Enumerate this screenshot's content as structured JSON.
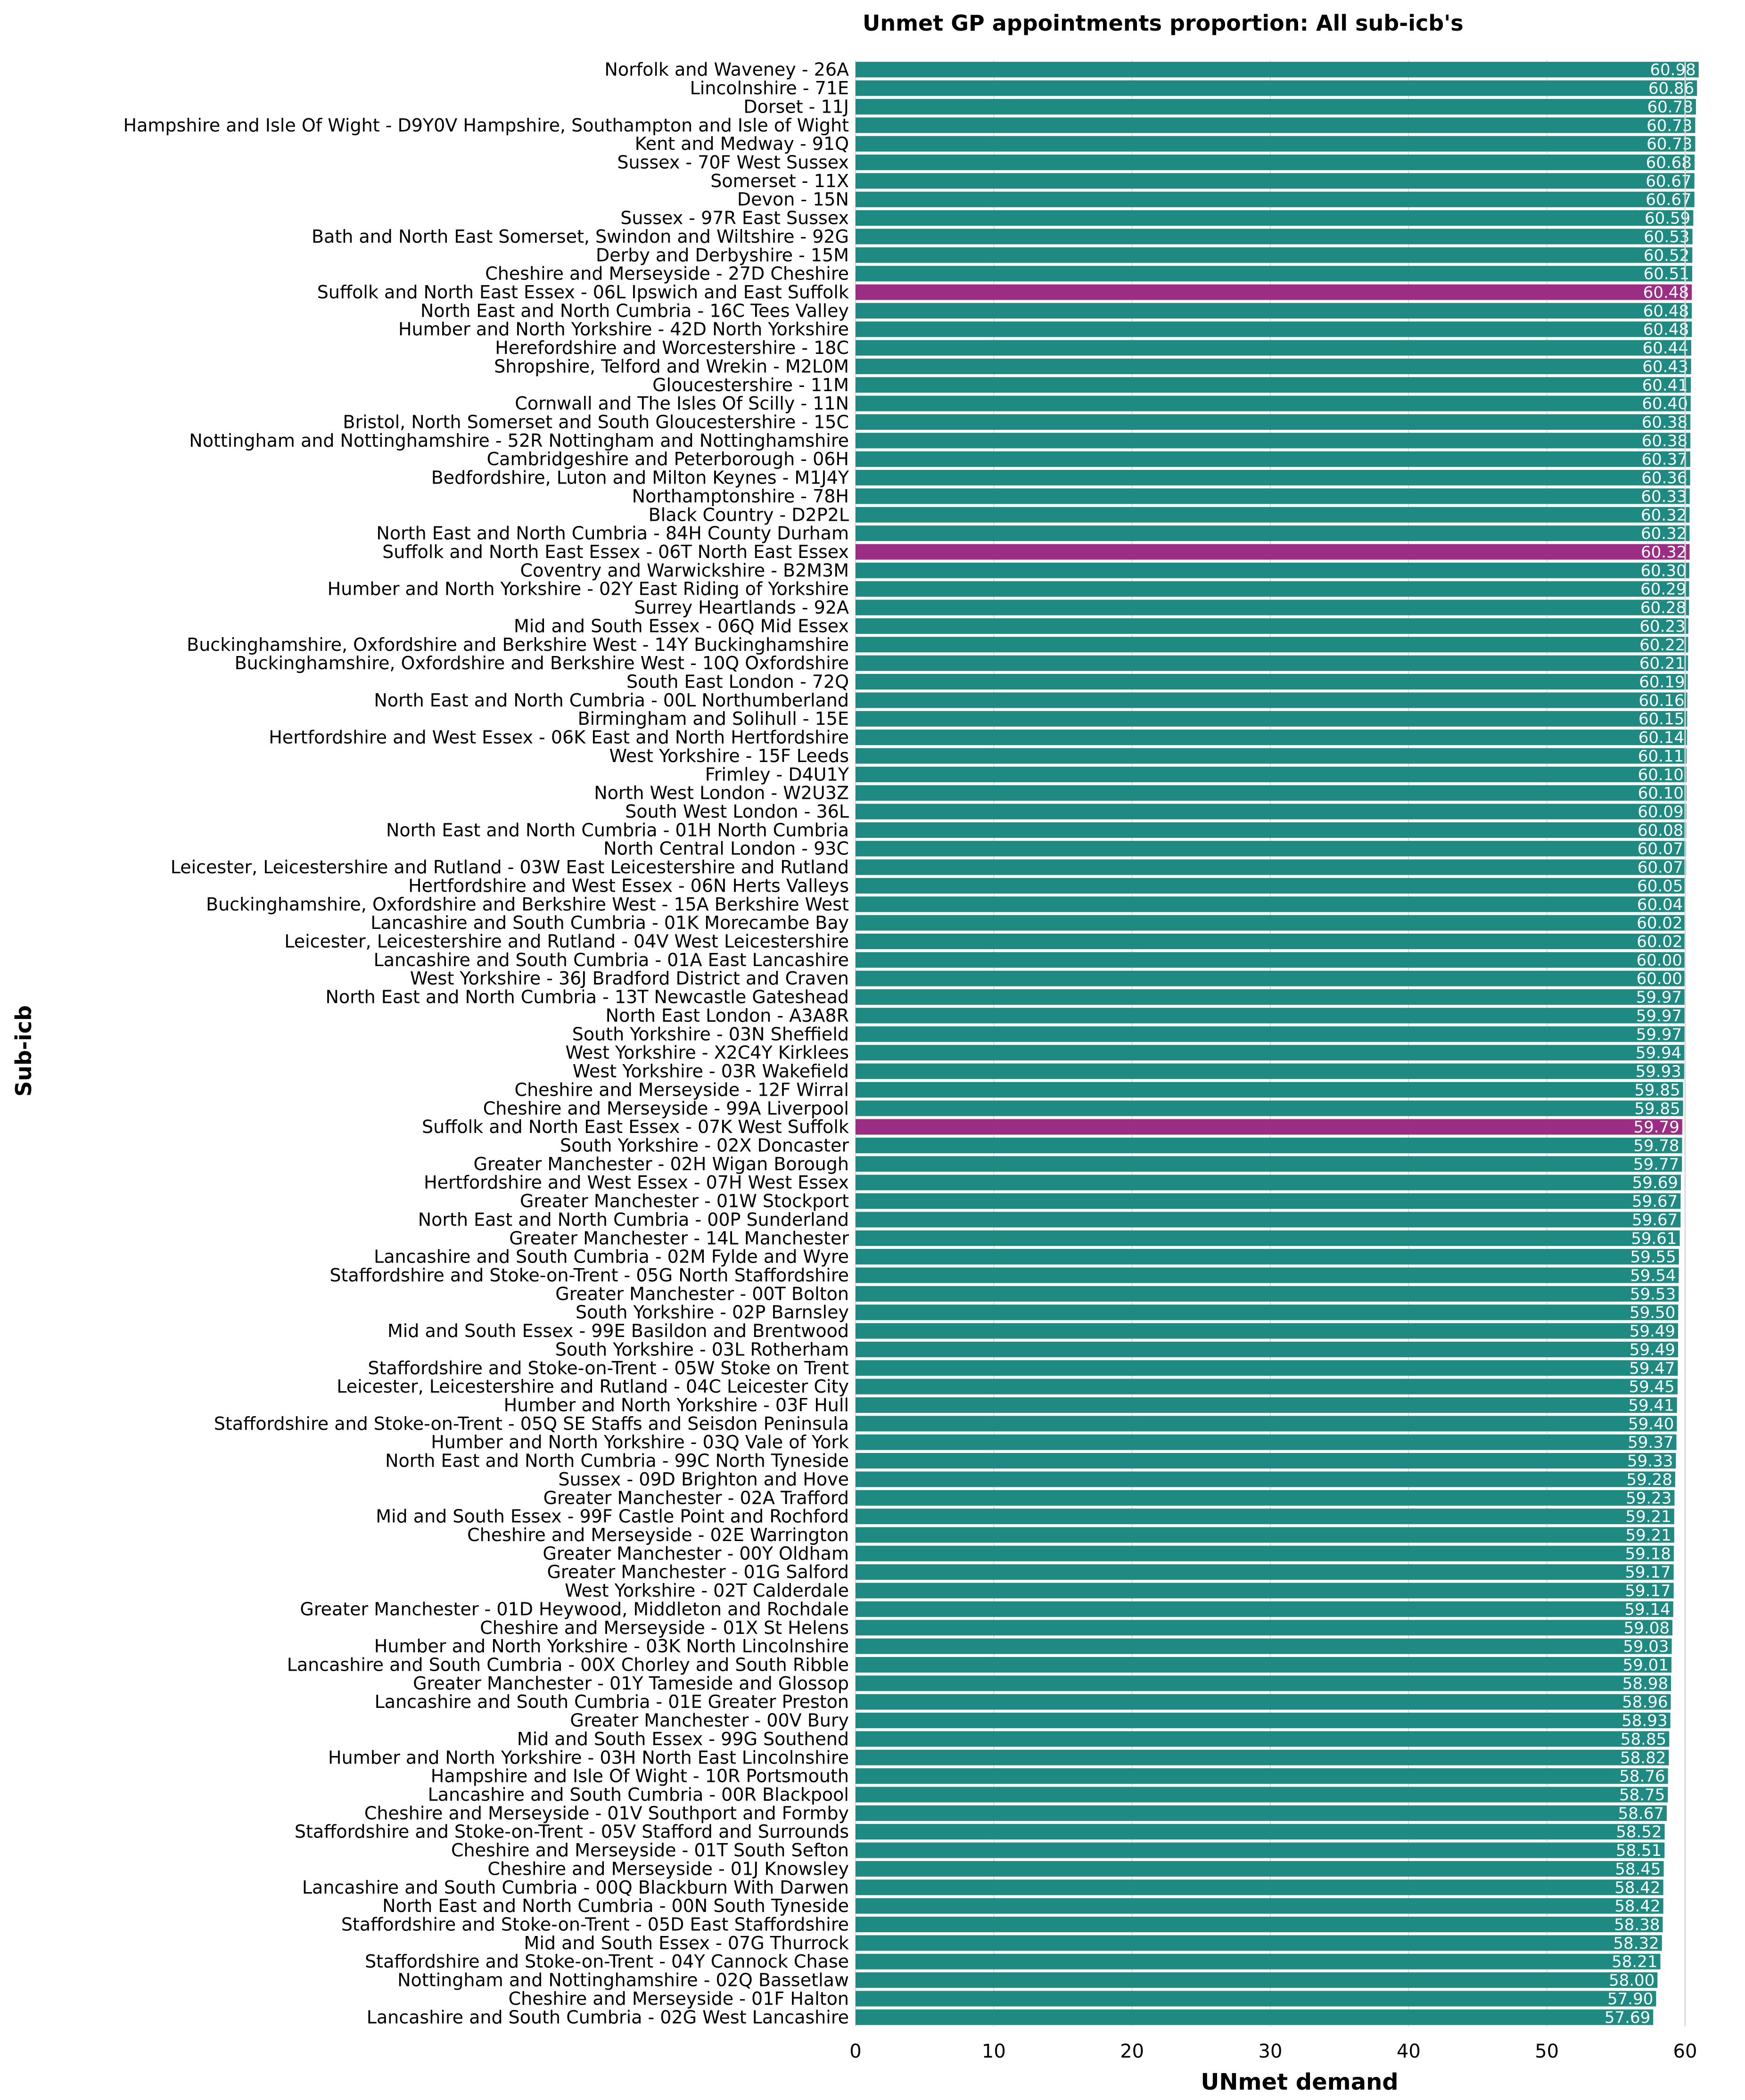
{
  "chart_data": {
    "type": "bar",
    "orientation": "horizontal",
    "title": "Unmet GP appointments proportion: All sub-icb's",
    "xlabel": "UNmet demand",
    "ylabel": "Sub-icb",
    "xlim": [
      0,
      60
    ],
    "xticks": [
      "0",
      "10",
      "20",
      "30",
      "40",
      "50",
      "60"
    ],
    "grid": "vertical",
    "colors": {
      "default": "#1f8a82",
      "highlight": "#9b2d85"
    },
    "bars": [
      {
        "label": "Norfolk and Waveney - 26A",
        "value": 60.98,
        "value_label": "60.98"
      },
      {
        "label": "Lincolnshire - 71E",
        "value": 60.86,
        "value_label": "60.86"
      },
      {
        "label": "Dorset - 11J",
        "value": 60.78,
        "value_label": "60.78"
      },
      {
        "label": "Hampshire and Isle Of Wight - D9Y0V Hampshire, Southampton and Isle of Wight",
        "value": 60.73,
        "value_label": "60.73"
      },
      {
        "label": "Kent and Medway - 91Q",
        "value": 60.73,
        "value_label": "60.73"
      },
      {
        "label": "Sussex - 70F West Sussex",
        "value": 60.68,
        "value_label": "60.68"
      },
      {
        "label": "Somerset - 11X",
        "value": 60.67,
        "value_label": "60.67"
      },
      {
        "label": "Devon - 15N",
        "value": 60.67,
        "value_label": "60.67"
      },
      {
        "label": "Sussex - 97R East Sussex",
        "value": 60.59,
        "value_label": "60.59"
      },
      {
        "label": "Bath and North East Somerset, Swindon and Wiltshire - 92G",
        "value": 60.53,
        "value_label": "60.53"
      },
      {
        "label": "Derby and Derbyshire - 15M",
        "value": 60.52,
        "value_label": "60.52"
      },
      {
        "label": "Cheshire and Merseyside - 27D Cheshire",
        "value": 60.51,
        "value_label": "60.51"
      },
      {
        "label": "Suffolk and North East Essex - 06L Ipswich and East Suffolk",
        "value": 60.48,
        "value_label": "60.48",
        "highlight": true
      },
      {
        "label": "North East and North Cumbria - 16C Tees Valley",
        "value": 60.48,
        "value_label": "60.48"
      },
      {
        "label": "Humber and North Yorkshire - 42D North Yorkshire",
        "value": 60.48,
        "value_label": "60.48"
      },
      {
        "label": "Herefordshire and Worcestershire - 18C",
        "value": 60.44,
        "value_label": "60.44"
      },
      {
        "label": "Shropshire, Telford and Wrekin - M2L0M",
        "value": 60.43,
        "value_label": "60.43"
      },
      {
        "label": "Gloucestershire - 11M",
        "value": 60.41,
        "value_label": "60.41"
      },
      {
        "label": "Cornwall and The Isles Of Scilly - 11N",
        "value": 60.4,
        "value_label": "60.40"
      },
      {
        "label": "Bristol, North Somerset and South Gloucestershire - 15C",
        "value": 60.38,
        "value_label": "60.38"
      },
      {
        "label": "Nottingham and Nottinghamshire - 52R Nottingham and Nottinghamshire",
        "value": 60.38,
        "value_label": "60.38"
      },
      {
        "label": "Cambridgeshire and Peterborough - 06H",
        "value": 60.37,
        "value_label": "60.37"
      },
      {
        "label": "Bedfordshire, Luton and Milton Keynes - M1J4Y",
        "value": 60.36,
        "value_label": "60.36"
      },
      {
        "label": "Northamptonshire - 78H",
        "value": 60.33,
        "value_label": "60.33"
      },
      {
        "label": "Black Country - D2P2L",
        "value": 60.32,
        "value_label": "60.32"
      },
      {
        "label": "North East and North Cumbria - 84H County Durham",
        "value": 60.32,
        "value_label": "60.32"
      },
      {
        "label": "Suffolk and North East Essex - 06T North East Essex",
        "value": 60.32,
        "value_label": "60.32",
        "highlight": true
      },
      {
        "label": "Coventry and Warwickshire - B2M3M",
        "value": 60.3,
        "value_label": "60.30"
      },
      {
        "label": "Humber and North Yorkshire - 02Y East Riding of Yorkshire",
        "value": 60.29,
        "value_label": "60.29"
      },
      {
        "label": "Surrey Heartlands - 92A",
        "value": 60.28,
        "value_label": "60.28"
      },
      {
        "label": "Mid and South Essex - 06Q Mid Essex",
        "value": 60.23,
        "value_label": "60.23"
      },
      {
        "label": "Buckinghamshire, Oxfordshire and Berkshire West - 14Y Buckinghamshire",
        "value": 60.22,
        "value_label": "60.22"
      },
      {
        "label": "Buckinghamshire, Oxfordshire and Berkshire West - 10Q Oxfordshire",
        "value": 60.21,
        "value_label": "60.21"
      },
      {
        "label": "South East London - 72Q",
        "value": 60.19,
        "value_label": "60.19"
      },
      {
        "label": "North East and North Cumbria - 00L Northumberland",
        "value": 60.16,
        "value_label": "60.16"
      },
      {
        "label": "Birmingham and Solihull - 15E",
        "value": 60.15,
        "value_label": "60.15"
      },
      {
        "label": "Hertfordshire and West Essex - 06K East and North Hertfordshire",
        "value": 60.14,
        "value_label": "60.14"
      },
      {
        "label": "West Yorkshire - 15F Leeds",
        "value": 60.11,
        "value_label": "60.11"
      },
      {
        "label": "Frimley - D4U1Y",
        "value": 60.1,
        "value_label": "60.10"
      },
      {
        "label": "North West London - W2U3Z",
        "value": 60.1,
        "value_label": "60.10"
      },
      {
        "label": "South West London - 36L",
        "value": 60.09,
        "value_label": "60.09"
      },
      {
        "label": "North East and North Cumbria - 01H North Cumbria",
        "value": 60.08,
        "value_label": "60.08"
      },
      {
        "label": "North Central London - 93C",
        "value": 60.07,
        "value_label": "60.07"
      },
      {
        "label": "Leicester, Leicestershire and Rutland - 03W East Leicestershire and Rutland",
        "value": 60.07,
        "value_label": "60.07"
      },
      {
        "label": "Hertfordshire and West Essex - 06N Herts Valleys",
        "value": 60.05,
        "value_label": "60.05"
      },
      {
        "label": "Buckinghamshire, Oxfordshire and Berkshire West - 15A Berkshire West",
        "value": 60.04,
        "value_label": "60.04"
      },
      {
        "label": "Lancashire and South Cumbria - 01K Morecambe Bay",
        "value": 60.02,
        "value_label": "60.02"
      },
      {
        "label": "Leicester, Leicestershire and Rutland - 04V West Leicestershire",
        "value": 60.02,
        "value_label": "60.02"
      },
      {
        "label": "Lancashire and South Cumbria - 01A East Lancashire",
        "value": 60.0,
        "value_label": "60.00"
      },
      {
        "label": "West Yorkshire - 36J Bradford District and Craven",
        "value": 60.0,
        "value_label": "60.00"
      },
      {
        "label": "North East and North Cumbria - 13T Newcastle Gateshead",
        "value": 59.97,
        "value_label": "59.97"
      },
      {
        "label": "North East London - A3A8R",
        "value": 59.97,
        "value_label": "59.97"
      },
      {
        "label": "South Yorkshire - 03N Sheffield",
        "value": 59.97,
        "value_label": "59.97"
      },
      {
        "label": "West Yorkshire - X2C4Y Kirklees",
        "value": 59.94,
        "value_label": "59.94"
      },
      {
        "label": "West Yorkshire - 03R Wakefield",
        "value": 59.93,
        "value_label": "59.93"
      },
      {
        "label": "Cheshire and Merseyside - 12F Wirral",
        "value": 59.85,
        "value_label": "59.85"
      },
      {
        "label": "Cheshire and Merseyside - 99A Liverpool",
        "value": 59.85,
        "value_label": "59.85"
      },
      {
        "label": "Suffolk and North East Essex - 07K West Suffolk",
        "value": 59.79,
        "value_label": "59.79",
        "highlight": true
      },
      {
        "label": "South Yorkshire - 02X Doncaster",
        "value": 59.78,
        "value_label": "59.78"
      },
      {
        "label": "Greater Manchester - 02H Wigan Borough",
        "value": 59.77,
        "value_label": "59.77"
      },
      {
        "label": "Hertfordshire and West Essex - 07H West Essex",
        "value": 59.69,
        "value_label": "59.69"
      },
      {
        "label": "Greater Manchester - 01W Stockport",
        "value": 59.67,
        "value_label": "59.67"
      },
      {
        "label": "North East and North Cumbria - 00P Sunderland",
        "value": 59.67,
        "value_label": "59.67"
      },
      {
        "label": "Greater Manchester - 14L Manchester",
        "value": 59.61,
        "value_label": "59.61"
      },
      {
        "label": "Lancashire and South Cumbria - 02M Fylde and Wyre",
        "value": 59.55,
        "value_label": "59.55"
      },
      {
        "label": "Staffordshire and Stoke-on-Trent - 05G North Staffordshire",
        "value": 59.54,
        "value_label": "59.54"
      },
      {
        "label": "Greater Manchester - 00T Bolton",
        "value": 59.53,
        "value_label": "59.53"
      },
      {
        "label": "South Yorkshire - 02P Barnsley",
        "value": 59.5,
        "value_label": "59.50"
      },
      {
        "label": "Mid and South Essex - 99E Basildon and Brentwood",
        "value": 59.49,
        "value_label": "59.49"
      },
      {
        "label": "South Yorkshire - 03L Rotherham",
        "value": 59.49,
        "value_label": "59.49"
      },
      {
        "label": "Staffordshire and Stoke-on-Trent - 05W Stoke on Trent",
        "value": 59.47,
        "value_label": "59.47"
      },
      {
        "label": "Leicester, Leicestershire and Rutland - 04C Leicester City",
        "value": 59.45,
        "value_label": "59.45"
      },
      {
        "label": "Humber and North Yorkshire - 03F Hull",
        "value": 59.41,
        "value_label": "59.41"
      },
      {
        "label": "Staffordshire and Stoke-on-Trent - 05Q SE Staffs and Seisdon Peninsula",
        "value": 59.4,
        "value_label": "59.40"
      },
      {
        "label": "Humber and North Yorkshire - 03Q Vale of York",
        "value": 59.37,
        "value_label": "59.37"
      },
      {
        "label": "North East and North Cumbria - 99C North Tyneside",
        "value": 59.33,
        "value_label": "59.33"
      },
      {
        "label": "Sussex - 09D Brighton and Hove",
        "value": 59.28,
        "value_label": "59.28"
      },
      {
        "label": "Greater Manchester - 02A Trafford",
        "value": 59.23,
        "value_label": "59.23"
      },
      {
        "label": "Mid and South Essex - 99F Castle Point and Rochford",
        "value": 59.21,
        "value_label": "59.21"
      },
      {
        "label": "Cheshire and Merseyside - 02E Warrington",
        "value": 59.21,
        "value_label": "59.21"
      },
      {
        "label": "Greater Manchester - 00Y Oldham",
        "value": 59.18,
        "value_label": "59.18"
      },
      {
        "label": "Greater Manchester - 01G Salford",
        "value": 59.17,
        "value_label": "59.17"
      },
      {
        "label": "West Yorkshire - 02T Calderdale",
        "value": 59.17,
        "value_label": "59.17"
      },
      {
        "label": "Greater Manchester - 01D Heywood, Middleton and Rochdale",
        "value": 59.14,
        "value_label": "59.14"
      },
      {
        "label": "Cheshire and Merseyside - 01X St Helens",
        "value": 59.08,
        "value_label": "59.08"
      },
      {
        "label": "Humber and North Yorkshire - 03K North Lincolnshire",
        "value": 59.03,
        "value_label": "59.03"
      },
      {
        "label": "Lancashire and South Cumbria - 00X Chorley and South Ribble",
        "value": 59.01,
        "value_label": "59.01"
      },
      {
        "label": "Greater Manchester - 01Y Tameside and Glossop",
        "value": 58.98,
        "value_label": "58.98"
      },
      {
        "label": "Lancashire and South Cumbria - 01E Greater Preston",
        "value": 58.96,
        "value_label": "58.96"
      },
      {
        "label": "Greater Manchester - 00V Bury",
        "value": 58.93,
        "value_label": "58.93"
      },
      {
        "label": "Mid and South Essex - 99G Southend",
        "value": 58.85,
        "value_label": "58.85"
      },
      {
        "label": "Humber and North Yorkshire - 03H North East Lincolnshire",
        "value": 58.82,
        "value_label": "58.82"
      },
      {
        "label": "Hampshire and Isle Of Wight - 10R Portsmouth",
        "value": 58.76,
        "value_label": "58.76"
      },
      {
        "label": "Lancashire and South Cumbria - 00R Blackpool",
        "value": 58.75,
        "value_label": "58.75"
      },
      {
        "label": "Cheshire and Merseyside - 01V Southport and Formby",
        "value": 58.67,
        "value_label": "58.67"
      },
      {
        "label": "Staffordshire and Stoke-on-Trent - 05V Stafford and Surrounds",
        "value": 58.52,
        "value_label": "58.52"
      },
      {
        "label": "Cheshire and Merseyside - 01T South Sefton",
        "value": 58.51,
        "value_label": "58.51"
      },
      {
        "label": "Cheshire and Merseyside - 01J Knowsley",
        "value": 58.45,
        "value_label": "58.45"
      },
      {
        "label": "Lancashire and South Cumbria - 00Q Blackburn With Darwen",
        "value": 58.42,
        "value_label": "58.42"
      },
      {
        "label": "North East and North Cumbria - 00N South Tyneside",
        "value": 58.42,
        "value_label": "58.42"
      },
      {
        "label": "Staffordshire and Stoke-on-Trent - 05D East Staffordshire",
        "value": 58.38,
        "value_label": "58.38"
      },
      {
        "label": "Mid and South Essex - 07G Thurrock",
        "value": 58.32,
        "value_label": "58.32"
      },
      {
        "label": "Staffordshire and Stoke-on-Trent - 04Y Cannock Chase",
        "value": 58.21,
        "value_label": "58.21"
      },
      {
        "label": "Nottingham and Nottinghamshire - 02Q Bassetlaw",
        "value": 58.0,
        "value_label": "58.00"
      },
      {
        "label": "Cheshire and Merseyside - 01F Halton",
        "value": 57.9,
        "value_label": "57.90"
      },
      {
        "label": "Lancashire and South Cumbria - 02G West Lancashire",
        "value": 57.69,
        "value_label": "57.69"
      }
    ]
  }
}
